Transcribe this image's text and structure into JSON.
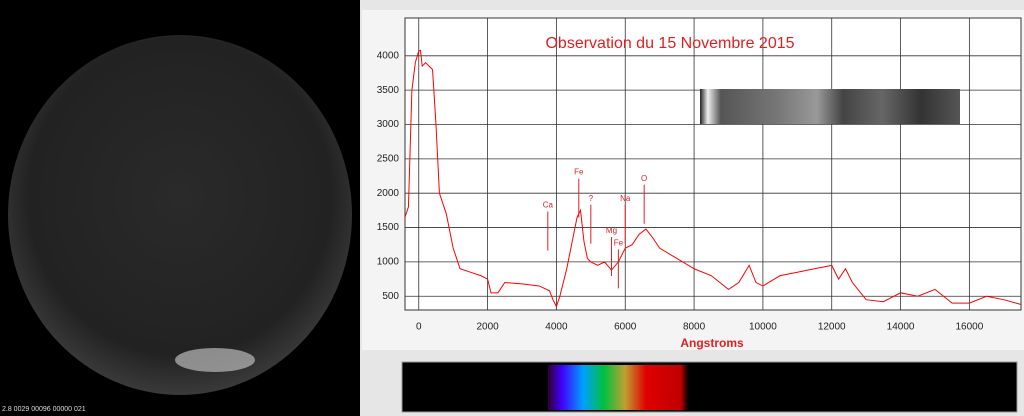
{
  "camera": {
    "overlay_text": "2.8 0029  00096  00000 021"
  },
  "chart_data": {
    "type": "line",
    "title": "Observation du 15 Novembre 2015",
    "x_label": "Angstroms",
    "x": [
      -400,
      -300,
      -200,
      -100,
      0,
      50,
      100,
      200,
      300,
      400,
      500,
      600,
      800,
      1000,
      1200,
      1500,
      1800,
      2000,
      2100,
      2300,
      2500,
      3000,
      3500,
      3800,
      3900,
      4000,
      4100,
      4300,
      4500,
      4600,
      4700,
      4800,
      4900,
      5000,
      5200,
      5400,
      5600,
      5800,
      6000,
      6200,
      6400,
      6600,
      6800,
      7000,
      7500,
      8000,
      8500,
      9000,
      9300,
      9600,
      9800,
      10000,
      10500,
      11000,
      11500,
      12000,
      12200,
      12400,
      12600,
      13000,
      13500,
      14000,
      14500,
      15000,
      15500,
      16000,
      16500,
      17000,
      17500
    ],
    "series": [
      {
        "color": "#ff0000",
        "values": [
          1650,
          1800,
          3500,
          3900,
          4070,
          4080,
          3850,
          3900,
          3850,
          3800,
          3000,
          2000,
          1700,
          1200,
          900,
          850,
          800,
          750,
          550,
          550,
          700,
          680,
          650,
          580,
          450,
          350,
          500,
          900,
          1400,
          1650,
          1750,
          1300,
          1050,
          1000,
          950,
          1000,
          880,
          1000,
          1200,
          1250,
          1400,
          1480,
          1350,
          1200,
          1050,
          900,
          800,
          600,
          700,
          950,
          700,
          650,
          800,
          850,
          900,
          950,
          750,
          900,
          700,
          450,
          420,
          550,
          500,
          600,
          400,
          400,
          500,
          450,
          380
        ]
      }
    ],
    "annotations": [
      {
        "text": "Ca",
        "x": 3750,
        "y": 1820
      },
      {
        "text": "Fe",
        "x": 4650,
        "y": 2300
      },
      {
        "text": "?",
        "x": 5000,
        "y": 1920
      },
      {
        "text": "Mg",
        "x": 5600,
        "y": 1450
      },
      {
        "text": "Fe",
        "x": 5800,
        "y": 1270
      },
      {
        "text": "Na",
        "x": 6000,
        "y": 1920
      },
      {
        "text": "O",
        "x": 6550,
        "y": 2210
      }
    ],
    "xlim": [
      -400,
      17500
    ],
    "ylim": [
      300,
      4550
    ],
    "xticks": [
      0,
      2000,
      4000,
      6000,
      8000,
      10000,
      12000,
      14000,
      16000
    ],
    "yticks": [
      500,
      1000,
      1500,
      2000,
      2500,
      3000,
      3500,
      4000
    ],
    "grid": true
  }
}
